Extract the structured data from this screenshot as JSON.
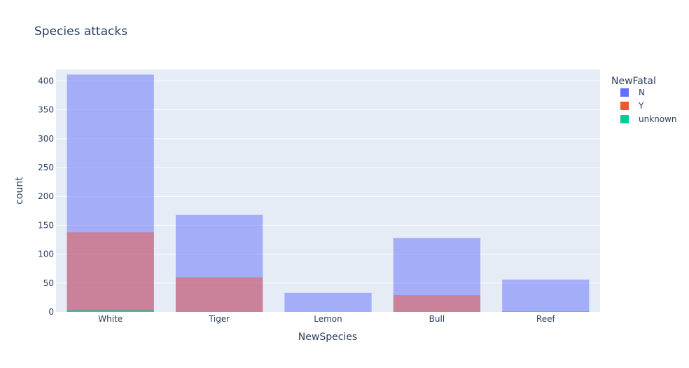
{
  "chart_data": {
    "type": "bar",
    "barmode": "overlay",
    "title": "Species attacks",
    "xlabel": "NewSpecies",
    "ylabel": "count",
    "categories": [
      "White",
      "Tiger",
      "Lemon",
      "Bull",
      "Reef"
    ],
    "ylim": [
      0,
      420
    ],
    "yticks": [
      0,
      50,
      100,
      150,
      200,
      250,
      300,
      350,
      400
    ],
    "grid": true,
    "legend": {
      "title": "NewFatal",
      "placement": "top-right"
    },
    "series": [
      {
        "name": "N",
        "color": "#636efa",
        "values": [
          411,
          168,
          33,
          128,
          56
        ]
      },
      {
        "name": "Y",
        "color": "#ef553b",
        "values": [
          138,
          60,
          0,
          29,
          0
        ]
      },
      {
        "name": "unknown",
        "color": "#00cc96",
        "values": [
          4,
          0,
          0,
          0,
          1
        ]
      }
    ]
  }
}
